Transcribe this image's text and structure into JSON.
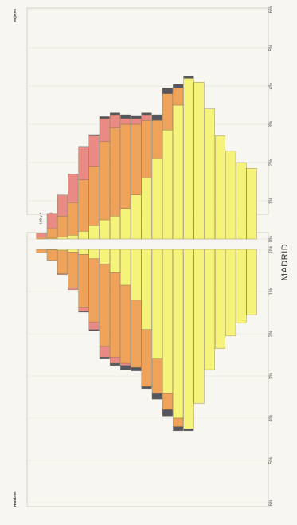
{
  "colors": {
    "yellow": "#f6f37a",
    "orange": "#eea25a",
    "pink": "#e98b84",
    "dark": "#555560",
    "frame": "#c8c8b8",
    "background": "#f7f6f1"
  },
  "chart_data": {
    "type": "bar",
    "orientation": "population pyramid (page rotated 90 degrees)",
    "title": "MADRID",
    "panel_left_label": "Hombres",
    "panel_right_label": "Mujeres",
    "age_groups": [
      "0 a 4",
      "5 a 9",
      "10 a 14",
      "15 a 19",
      "20 a 24",
      "25 a 29",
      "30 a 34",
      "35 a 39",
      "40 a 44",
      "45 a 49",
      "50 a 54",
      "55 a 59",
      "60 a 64",
      "65 a 69",
      "70 a 74",
      "75 a 79",
      "80 a 84",
      "85 a 89",
      "90 a 94",
      "95 a 99",
      "100 y +"
    ],
    "tick_labels": [
      "0%",
      "1%",
      "2%",
      "3%",
      "4%",
      "5%",
      "6%"
    ],
    "xlim": [
      0,
      6
    ],
    "series_colors": [
      "#f6f37a",
      "#eea25a",
      "#e98b84",
      "#555560"
    ],
    "hombres": {
      "series": [
        {
          "values": [
            1.55,
            1.75,
            2.05,
            2.35,
            2.85,
            3.65,
            4.25,
            4.0,
            3.4,
            2.6,
            1.9,
            1.2,
            0.85,
            0.55,
            0.35,
            0.22,
            0.12,
            0.06,
            0.03,
            0.01,
            0.0
          ]
        },
        {
          "values": [
            0.0,
            0.0,
            0.0,
            0.0,
            0.0,
            0.0,
            0.0,
            0.2,
            0.4,
            0.8,
            1.35,
            1.6,
            1.85,
            2.0,
            1.95,
            1.5,
            1.25,
            0.85,
            0.55,
            0.25,
            0.08
          ]
        },
        {
          "values": [
            0.0,
            0.0,
            0.0,
            0.0,
            0.0,
            0.0,
            0.0,
            0.0,
            0.0,
            0.0,
            0.0,
            0.0,
            0.05,
            0.15,
            0.25,
            0.18,
            0.1,
            0.05,
            0.02,
            0.0,
            0.0
          ]
        },
        {
          "values": [
            0.0,
            0.0,
            0.0,
            0.0,
            0.0,
            0.0,
            0.05,
            0.1,
            0.15,
            0.15,
            0.05,
            0.08,
            0.1,
            0.05,
            0.05,
            0.03,
            0.02,
            0.0,
            0.0,
            0.0,
            0.0
          ]
        }
      ]
    },
    "mujeres": {
      "series": [
        {
          "values": [
            1.85,
            2.0,
            2.3,
            2.7,
            3.4,
            4.1,
            4.2,
            3.5,
            2.85,
            2.1,
            1.6,
            1.15,
            0.8,
            0.6,
            0.5,
            0.35,
            0.2,
            0.1,
            0.05,
            0.02,
            0.0
          ]
        },
        {
          "values": [
            0.0,
            0.0,
            0.0,
            0.0,
            0.0,
            0.0,
            0.0,
            0.45,
            0.95,
            1.0,
            1.5,
            1.85,
            2.2,
            2.3,
            2.05,
            1.55,
            1.35,
            0.85,
            0.55,
            0.25,
            0.05
          ]
        },
        {
          "values": [
            0.0,
            0.0,
            0.0,
            0.0,
            0.0,
            0.0,
            0.0,
            0.0,
            0.0,
            0.0,
            0.15,
            0.15,
            0.15,
            0.35,
            0.6,
            0.8,
            0.85,
            0.75,
            0.55,
            0.4,
            0.1
          ]
        },
        {
          "values": [
            0.0,
            0.0,
            0.0,
            0.0,
            0.0,
            0.0,
            0.05,
            0.1,
            0.15,
            0.15,
            0.05,
            0.08,
            0.1,
            0.05,
            0.05,
            0.03,
            0.02,
            0.0,
            0.0,
            0.0,
            0.0
          ]
        }
      ]
    }
  }
}
